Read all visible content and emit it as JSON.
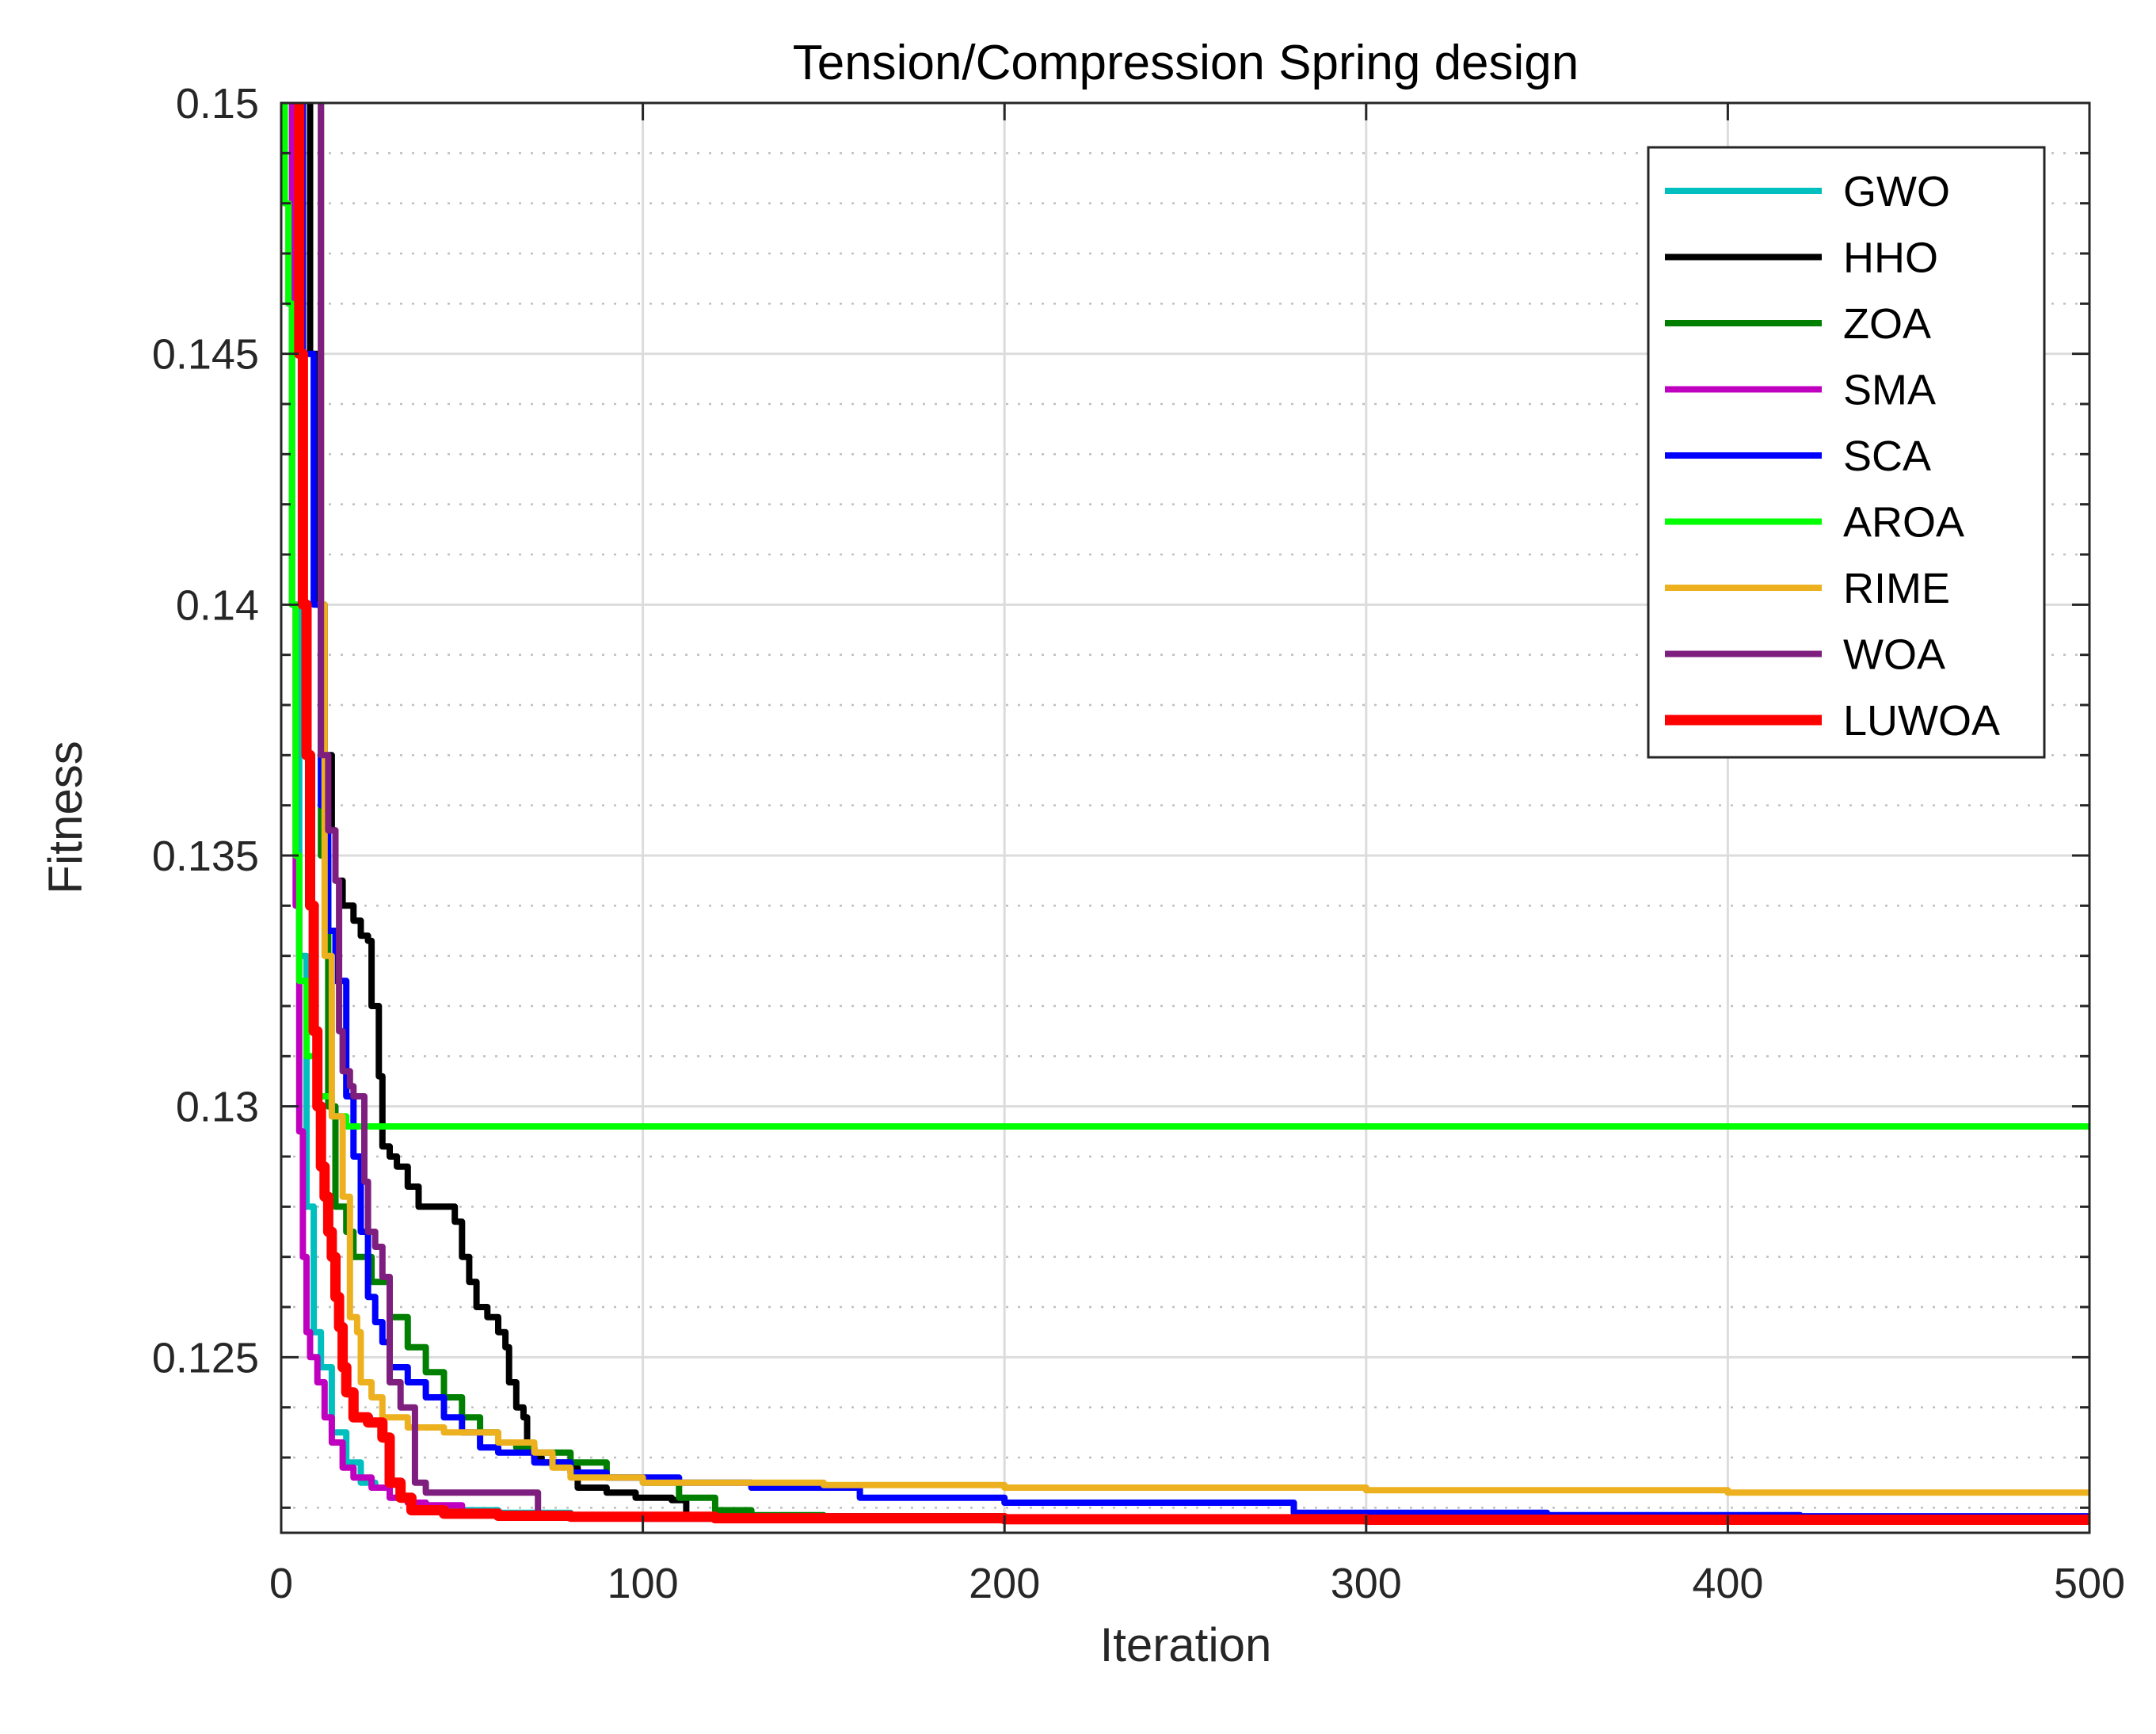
{
  "chart_data": {
    "type": "line",
    "title": "Tension/Compression Spring design",
    "xlabel": "Iteration",
    "ylabel": "Fitness",
    "xlim": [
      0,
      500
    ],
    "ylim": [
      0.1215,
      0.15
    ],
    "xticks": [
      0,
      100,
      200,
      300,
      400,
      500
    ],
    "xtick_labels": [
      "0",
      "100",
      "200",
      "300",
      "400",
      "500"
    ],
    "yticks": [
      0.125,
      0.13,
      0.135,
      0.14,
      0.145,
      0.15
    ],
    "ytick_labels": [
      "0.125",
      "0.13",
      "0.135",
      "0.14",
      "0.145",
      "0.15"
    ],
    "grid": true,
    "minor_grid": true,
    "legend_position": "top-right",
    "series": [
      {
        "name": "GWO",
        "color": "#00bfbf",
        "width": 8,
        "points": [
          [
            1,
            0.151
          ],
          [
            3,
            0.14
          ],
          [
            5,
            0.133
          ],
          [
            7,
            0.128
          ],
          [
            9,
            0.1255
          ],
          [
            11,
            0.1248
          ],
          [
            14,
            0.1235
          ],
          [
            18,
            0.1229
          ],
          [
            22,
            0.1225
          ],
          [
            26,
            0.1224
          ],
          [
            30,
            0.1222
          ],
          [
            35,
            0.1221
          ],
          [
            40,
            0.122
          ],
          [
            48,
            0.12195
          ],
          [
            60,
            0.1219
          ],
          [
            80,
            0.12185
          ],
          [
            120,
            0.12182
          ],
          [
            200,
            0.1218
          ],
          [
            500,
            0.1218
          ]
        ]
      },
      {
        "name": "HHO",
        "color": "#000000",
        "width": 8,
        "points": [
          [
            5,
            0.151
          ],
          [
            8,
            0.145
          ],
          [
            10,
            0.14
          ],
          [
            12,
            0.137
          ],
          [
            14,
            0.1355
          ],
          [
            15,
            0.1345
          ],
          [
            17,
            0.134
          ],
          [
            20,
            0.1337
          ],
          [
            22,
            0.1334
          ],
          [
            24,
            0.1333
          ],
          [
            25,
            0.132
          ],
          [
            27,
            0.1306
          ],
          [
            28,
            0.1292
          ],
          [
            30,
            0.129
          ],
          [
            32,
            0.1288
          ],
          [
            35,
            0.1284
          ],
          [
            38,
            0.128
          ],
          [
            45,
            0.128
          ],
          [
            48,
            0.1277
          ],
          [
            50,
            0.127
          ],
          [
            52,
            0.1265
          ],
          [
            54,
            0.126
          ],
          [
            57,
            0.1258
          ],
          [
            60,
            0.1255
          ],
          [
            62,
            0.1252
          ],
          [
            63,
            0.1245
          ],
          [
            65,
            0.124
          ],
          [
            67,
            0.1238
          ],
          [
            68,
            0.1232
          ],
          [
            70,
            0.123
          ],
          [
            72,
            0.1229
          ],
          [
            80,
            0.1228
          ],
          [
            82,
            0.1224
          ],
          [
            90,
            0.1223
          ],
          [
            98,
            0.1222
          ],
          [
            108,
            0.12215
          ],
          [
            112,
            0.12185
          ],
          [
            120,
            0.12183
          ],
          [
            200,
            0.1218
          ],
          [
            500,
            0.1218
          ]
        ]
      },
      {
        "name": "ZOA",
        "color": "#007f00",
        "width": 8,
        "points": [
          [
            10,
            0.151
          ],
          [
            11,
            0.135
          ],
          [
            13,
            0.13
          ],
          [
            15,
            0.128
          ],
          [
            18,
            0.1275
          ],
          [
            20,
            0.127
          ],
          [
            25,
            0.1265
          ],
          [
            30,
            0.1258
          ],
          [
            35,
            0.1252
          ],
          [
            40,
            0.1247
          ],
          [
            45,
            0.1242
          ],
          [
            50,
            0.1238
          ],
          [
            55,
            0.1235
          ],
          [
            60,
            0.1233
          ],
          [
            65,
            0.1232
          ],
          [
            70,
            0.1231
          ],
          [
            80,
            0.1229
          ],
          [
            90,
            0.1226
          ],
          [
            100,
            0.1225
          ],
          [
            110,
            0.1222
          ],
          [
            120,
            0.12195
          ],
          [
            130,
            0.12185
          ],
          [
            150,
            0.12181
          ],
          [
            200,
            0.1218
          ],
          [
            500,
            0.1218
          ]
        ]
      },
      {
        "name": "SMA",
        "color": "#bf00bf",
        "width": 8,
        "points": [
          [
            2,
            0.151
          ],
          [
            3,
            0.14
          ],
          [
            4,
            0.134
          ],
          [
            5,
            0.1295
          ],
          [
            6,
            0.127
          ],
          [
            7,
            0.1255
          ],
          [
            8,
            0.125
          ],
          [
            10,
            0.1245
          ],
          [
            12,
            0.1238
          ],
          [
            14,
            0.1233
          ],
          [
            17,
            0.1228
          ],
          [
            20,
            0.1226
          ],
          [
            25,
            0.1224
          ],
          [
            30,
            0.1222
          ],
          [
            35,
            0.1221
          ],
          [
            40,
            0.12205
          ],
          [
            50,
            0.1219
          ],
          [
            60,
            0.12185
          ],
          [
            80,
            0.12182
          ],
          [
            120,
            0.1218
          ],
          [
            500,
            0.1218
          ]
        ]
      },
      {
        "name": "SCA",
        "color": "#0000ff",
        "width": 8,
        "points": [
          [
            4,
            0.151
          ],
          [
            6,
            0.145
          ],
          [
            9,
            0.14
          ],
          [
            11,
            0.136
          ],
          [
            13,
            0.1335
          ],
          [
            15,
            0.1325
          ],
          [
            18,
            0.1302
          ],
          [
            20,
            0.129
          ],
          [
            22,
            0.1275
          ],
          [
            24,
            0.1262
          ],
          [
            26,
            0.1257
          ],
          [
            28,
            0.1253
          ],
          [
            30,
            0.1248
          ],
          [
            35,
            0.1245
          ],
          [
            40,
            0.1242
          ],
          [
            45,
            0.1238
          ],
          [
            50,
            0.1235
          ],
          [
            55,
            0.1232
          ],
          [
            60,
            0.1231
          ],
          [
            70,
            0.1229
          ],
          [
            80,
            0.1227
          ],
          [
            90,
            0.1226
          ],
          [
            110,
            0.1225
          ],
          [
            130,
            0.1224
          ],
          [
            160,
            0.1222
          ],
          [
            200,
            0.1221
          ],
          [
            280,
            0.1219
          ],
          [
            350,
            0.12185
          ],
          [
            420,
            0.12183
          ],
          [
            500,
            0.1218
          ]
        ]
      },
      {
        "name": "AROA",
        "color": "#00ff00",
        "width": 8,
        "points": [
          [
            0,
            0.151
          ],
          [
            1,
            0.148
          ],
          [
            2,
            0.146
          ],
          [
            3,
            0.14
          ],
          [
            4,
            0.135
          ],
          [
            5,
            0.1325
          ],
          [
            7,
            0.131
          ],
          [
            10,
            0.1302
          ],
          [
            14,
            0.1298
          ],
          [
            18,
            0.1296
          ],
          [
            20,
            0.1296
          ],
          [
            500,
            0.1296
          ]
        ]
      },
      {
        "name": "RIME",
        "color": "#edb120",
        "width": 8,
        "points": [
          [
            10,
            0.151
          ],
          [
            11,
            0.14
          ],
          [
            12,
            0.133
          ],
          [
            14,
            0.1298
          ],
          [
            17,
            0.1282
          ],
          [
            19,
            0.1258
          ],
          [
            21,
            0.1255
          ],
          [
            22,
            0.1245
          ],
          [
            25,
            0.1242
          ],
          [
            28,
            0.1238
          ],
          [
            35,
            0.1236
          ],
          [
            45,
            0.1235
          ],
          [
            60,
            0.1233
          ],
          [
            70,
            0.1231
          ],
          [
            75,
            0.1228
          ],
          [
            80,
            0.1226
          ],
          [
            100,
            0.1225
          ],
          [
            150,
            0.12245
          ],
          [
            200,
            0.1224
          ],
          [
            300,
            0.12235
          ],
          [
            400,
            0.1223
          ],
          [
            500,
            0.1223
          ]
        ]
      },
      {
        "name": "WOA",
        "color": "#7e1e7e",
        "width": 8,
        "points": [
          [
            10,
            0.151
          ],
          [
            11,
            0.137
          ],
          [
            13,
            0.1355
          ],
          [
            15,
            0.1345
          ],
          [
            16,
            0.1315
          ],
          [
            17,
            0.1307
          ],
          [
            18,
            0.1307
          ],
          [
            19,
            0.1304
          ],
          [
            20,
            0.1302
          ],
          [
            22,
            0.1302
          ],
          [
            23,
            0.1285
          ],
          [
            24,
            0.1275
          ],
          [
            26,
            0.1272
          ],
          [
            28,
            0.1266
          ],
          [
            30,
            0.1245
          ],
          [
            33,
            0.124
          ],
          [
            36,
            0.124
          ],
          [
            37,
            0.1225
          ],
          [
            40,
            0.1223
          ],
          [
            50,
            0.1223
          ],
          [
            70,
            0.1223
          ],
          [
            71,
            0.1218
          ],
          [
            100,
            0.12178
          ],
          [
            500,
            0.12176
          ]
        ]
      },
      {
        "name": "LUWOA",
        "color": "#ff0000",
        "width": 13,
        "points": [
          [
            4,
            0.151
          ],
          [
            5,
            0.145
          ],
          [
            6,
            0.14
          ],
          [
            7,
            0.137
          ],
          [
            8,
            0.134
          ],
          [
            9,
            0.1315
          ],
          [
            10,
            0.13
          ],
          [
            11,
            0.1288
          ],
          [
            12,
            0.1282
          ],
          [
            13,
            0.1275
          ],
          [
            14,
            0.127
          ],
          [
            15,
            0.1262
          ],
          [
            16,
            0.1256
          ],
          [
            17,
            0.1248
          ],
          [
            18,
            0.1243
          ],
          [
            20,
            0.1238
          ],
          [
            24,
            0.1237
          ],
          [
            28,
            0.1234
          ],
          [
            30,
            0.1225
          ],
          [
            33,
            0.1222
          ],
          [
            36,
            0.12195
          ],
          [
            45,
            0.12188
          ],
          [
            60,
            0.12184
          ],
          [
            80,
            0.12182
          ],
          [
            120,
            0.12179
          ],
          [
            200,
            0.12177
          ],
          [
            300,
            0.12176
          ],
          [
            500,
            0.12175
          ]
        ]
      }
    ]
  }
}
